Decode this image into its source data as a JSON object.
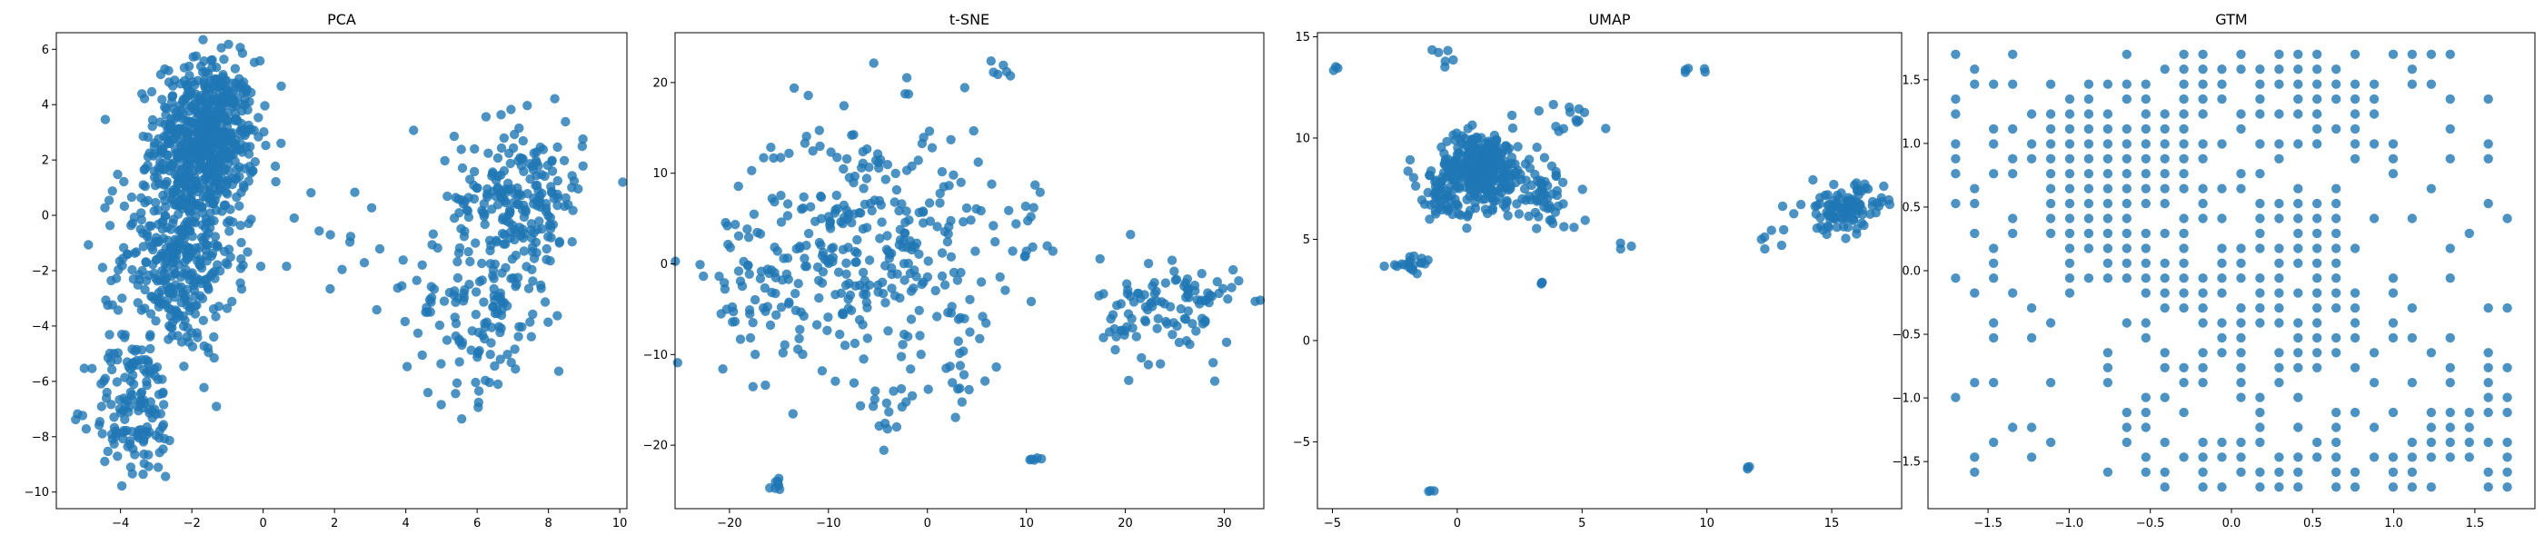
{
  "figure": {
    "marker_color": "#1f77b4",
    "marker_alpha": 0.8
  },
  "chart_data": [
    {
      "type": "scatter",
      "title": "PCA",
      "xlabel": "",
      "ylabel": "",
      "xlim": [
        -5.8,
        10.2
      ],
      "ylim": [
        -10.6,
        6.6
      ],
      "xticks": [
        -4,
        -2,
        0,
        2,
        4,
        6,
        8,
        10
      ],
      "yticks": [
        -10,
        -8,
        -6,
        -4,
        -2,
        0,
        2,
        4,
        6
      ],
      "grid": false,
      "clusters": [
        {
          "center": [
            -1.6,
            2.8
          ],
          "spread": [
            0.7,
            1.4
          ],
          "count": 600
        },
        {
          "center": [
            -2.4,
            -1.5
          ],
          "spread": [
            0.8,
            1.8
          ],
          "count": 380
        },
        {
          "center": [
            -3.6,
            -7.0
          ],
          "spread": [
            0.6,
            1.3
          ],
          "count": 140
        },
        {
          "center": [
            7.2,
            0.6
          ],
          "spread": [
            0.9,
            1.4
          ],
          "count": 220
        },
        {
          "center": [
            6.0,
            -3.6
          ],
          "spread": [
            1.0,
            1.6
          ],
          "count": 120
        },
        {
          "center": [
            2.5,
            -0.5
          ],
          "spread": [
            1.2,
            2.2
          ],
          "count": 20
        }
      ]
    },
    {
      "type": "scatter",
      "title": "t-SNE",
      "xlabel": "",
      "ylabel": "",
      "xlim": [
        -25.5,
        34.0
      ],
      "ylim": [
        -27.0,
        25.5
      ],
      "xticks": [
        -20,
        -10,
        0,
        10,
        20,
        30
      ],
      "yticks": [
        -20,
        -10,
        0,
        10,
        20
      ],
      "grid": false,
      "clusters": [
        {
          "center": [
            -6.0,
            2.0
          ],
          "spread": [
            6.5,
            7.0
          ],
          "count": 330
        },
        {
          "center": [
            -18.0,
            -3.0
          ],
          "spread": [
            2.5,
            4.5
          ],
          "count": 40
        },
        {
          "center": [
            24.5,
            -5.0
          ],
          "spread": [
            3.5,
            3.0
          ],
          "count": 110
        },
        {
          "center": [
            -15.0,
            -24.3
          ],
          "spread": [
            0.4,
            0.5
          ],
          "count": 8
        },
        {
          "center": [
            11.0,
            -21.5
          ],
          "spread": [
            0.4,
            0.3
          ],
          "count": 5
        },
        {
          "center": [
            7.0,
            21.5
          ],
          "spread": [
            0.6,
            1.0
          ],
          "count": 6
        },
        {
          "center": [
            -4.5,
            -16.5
          ],
          "spread": [
            1.2,
            1.4
          ],
          "count": 14
        },
        {
          "center": [
            4.0,
            -12.0
          ],
          "spread": [
            1.5,
            2.0
          ],
          "count": 10
        },
        {
          "center": [
            10.5,
            5.0
          ],
          "spread": [
            1.2,
            2.5
          ],
          "count": 12
        }
      ]
    },
    {
      "type": "scatter",
      "title": "UMAP",
      "xlabel": "",
      "ylabel": "",
      "xlim": [
        -5.6,
        17.8
      ],
      "ylim": [
        -8.3,
        15.2
      ],
      "xticks": [
        -5,
        0,
        5,
        10,
        15
      ],
      "yticks": [
        -5,
        0,
        5,
        10,
        15
      ],
      "grid": false,
      "clusters": [
        {
          "center": [
            1.0,
            8.5
          ],
          "spread": [
            0.9,
            0.9
          ],
          "count": 320
        },
        {
          "center": [
            -0.6,
            7.0
          ],
          "spread": [
            0.9,
            0.9
          ],
          "count": 50
        },
        {
          "center": [
            3.6,
            7.0
          ],
          "spread": [
            0.6,
            0.8
          ],
          "count": 50
        },
        {
          "center": [
            -1.8,
            3.8
          ],
          "spread": [
            0.5,
            0.2
          ],
          "count": 20
        },
        {
          "center": [
            15.5,
            6.5
          ],
          "spread": [
            0.8,
            0.6
          ],
          "count": 110
        },
        {
          "center": [
            4.5,
            11.0
          ],
          "spread": [
            0.8,
            0.5
          ],
          "count": 12
        },
        {
          "center": [
            -4.9,
            13.4
          ],
          "spread": [
            0.1,
            0.1
          ],
          "count": 3
        },
        {
          "center": [
            -0.6,
            14.0
          ],
          "spread": [
            0.2,
            0.2
          ],
          "count": 6
        },
        {
          "center": [
            9.3,
            13.3
          ],
          "spread": [
            0.3,
            0.1
          ],
          "count": 5
        },
        {
          "center": [
            12.5,
            5.0
          ],
          "spread": [
            0.3,
            0.3
          ],
          "count": 5
        },
        {
          "center": [
            6.7,
            4.6
          ],
          "spread": [
            0.2,
            0.1
          ],
          "count": 3
        },
        {
          "center": [
            3.4,
            2.9
          ],
          "spread": [
            0.1,
            0.1
          ],
          "count": 3
        },
        {
          "center": [
            -1.0,
            -7.3
          ],
          "spread": [
            0.1,
            0.1
          ],
          "count": 3
        },
        {
          "center": [
            11.6,
            -6.3
          ],
          "spread": [
            0.1,
            0.1
          ],
          "count": 3
        }
      ]
    },
    {
      "type": "scatter",
      "title": "GTM",
      "xlabel": "",
      "ylabel": "",
      "xlim": [
        -1.87,
        1.87
      ],
      "ylim": [
        -1.87,
        1.87
      ],
      "xticks": [
        -1.5,
        -1.0,
        -0.5,
        0.0,
        0.5,
        1.0,
        1.5
      ],
      "yticks": [
        -1.5,
        -1.0,
        -0.5,
        0.0,
        0.5,
        1.0,
        1.5
      ],
      "grid": false,
      "lattice": {
        "min": -1.7,
        "max": 1.7,
        "points": 30
      },
      "density_blobs": [
        {
          "center": [
            -0.8,
            0.7
          ],
          "spread": [
            0.5,
            0.5
          ],
          "weight": 0.9
        },
        {
          "center": [
            0.5,
            1.4
          ],
          "spread": [
            0.6,
            0.3
          ],
          "weight": 0.8
        },
        {
          "center": [
            -0.2,
            -0.4
          ],
          "spread": [
            0.4,
            0.5
          ],
          "weight": 0.6
        },
        {
          "center": [
            0.5,
            0.0
          ],
          "spread": [
            0.25,
            0.6
          ],
          "weight": 0.75
        },
        {
          "center": [
            0.4,
            -1.5
          ],
          "spread": [
            0.7,
            0.2
          ],
          "weight": 0.7
        },
        {
          "center": [
            1.5,
            -1.2
          ],
          "spread": [
            0.3,
            0.4
          ],
          "weight": 0.6
        }
      ],
      "background_density": 0.12
    }
  ]
}
